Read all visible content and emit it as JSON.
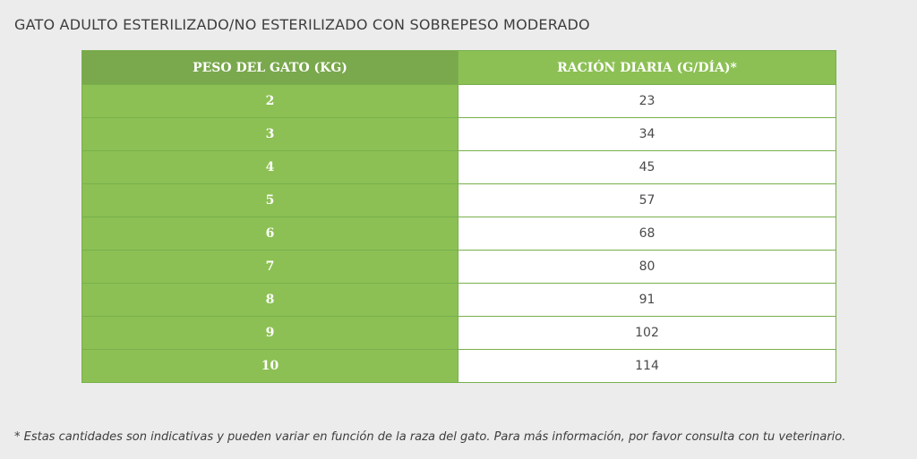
{
  "title": "GATO ADULTO ESTERILIZADO/NO ESTERILIZADO CON SOBREPESO MODERADO",
  "table": {
    "headers": [
      "PESO DEL GATO (KG)",
      "RACIÓN DIARIA (G/DÍA)*"
    ],
    "rows": [
      {
        "weight": "2",
        "ration": "23"
      },
      {
        "weight": "3",
        "ration": "34"
      },
      {
        "weight": "4",
        "ration": "45"
      },
      {
        "weight": "5",
        "ration": "57"
      },
      {
        "weight": "6",
        "ration": "68"
      },
      {
        "weight": "7",
        "ration": "80"
      },
      {
        "weight": "8",
        "ration": "91"
      },
      {
        "weight": "9",
        "ration": "102"
      },
      {
        "weight": "10",
        "ration": "114"
      }
    ]
  },
  "footnote": "* Estas cantidades son indicativas y pueden variar en función de la raza del gato. Para más información, por favor consulta con tu veterinario.",
  "colors": {
    "header_dark_green": "#7aa84d",
    "header_green": "#8cc054",
    "weight_cell_green": "#8cc054",
    "background": "#ececec"
  }
}
